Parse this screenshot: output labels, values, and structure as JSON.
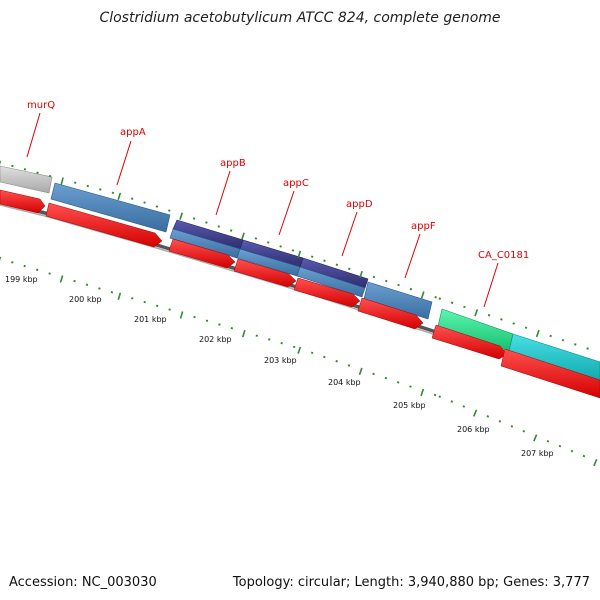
{
  "title": "Clostridium acetobutylicum ATCC 824, complete genome",
  "footer": {
    "accession": "Accession: NC_003030",
    "summary": "Topology: circular; Length: 3,940,880 bp; Genes: 3,777"
  },
  "genes": [
    {
      "name": "murQ",
      "color": "#c0c0c0"
    },
    {
      "name": "appA",
      "color": "#4b82b8"
    },
    {
      "name": "appB",
      "color": "#43438f"
    },
    {
      "name": "appC",
      "color": "#43438f"
    },
    {
      "name": "appD",
      "color": "#43438f"
    },
    {
      "name": "appF",
      "color": "#4b82b8"
    },
    {
      "name": "CA_C0181",
      "color": "#2ee08c"
    },
    {
      "name": "",
      "color": "#1cc4c8"
    }
  ],
  "scale_labels": [
    "199 kbp",
    "200 kbp",
    "201 kbp",
    "202 kbp",
    "203 kbp",
    "204 kbp",
    "205 kbp",
    "206 kbp",
    "207 kbp"
  ],
  "colors": {
    "cds_strand": "#ff0000",
    "backbone": "#777777",
    "tick": "#2e8b2e",
    "label": "#e00000"
  }
}
